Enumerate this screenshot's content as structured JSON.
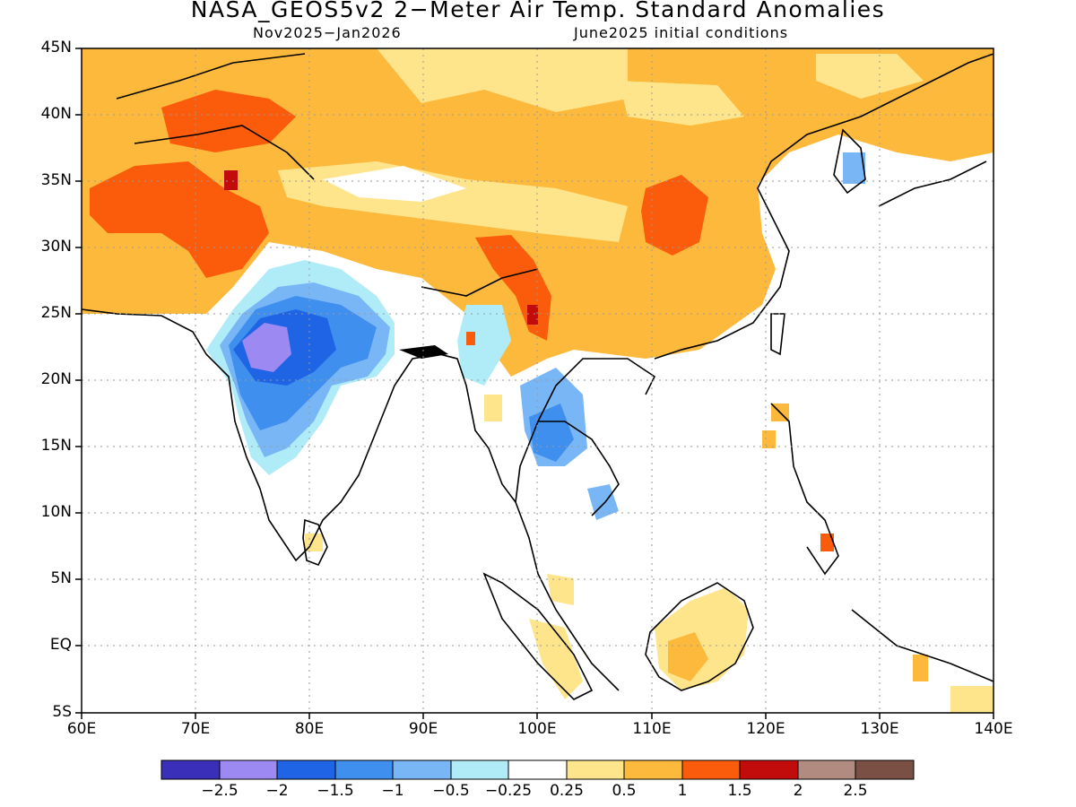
{
  "title": "NASA_GEOS5v2 2−Meter Air Temp. Standard Anomalies",
  "subtitle_left": "Nov2025−Jan2026",
  "subtitle_right": "June2025 initial conditions",
  "lat_labels": [
    "45N",
    "40N",
    "35N",
    "30N",
    "25N",
    "20N",
    "15N",
    "10N",
    "5N",
    "EQ",
    "5S"
  ],
  "lon_labels": [
    "60E",
    "70E",
    "80E",
    "90E",
    "100E",
    "110E",
    "120E",
    "130E",
    "140E"
  ],
  "colorbar": {
    "labels": [
      "−2.5",
      "−2",
      "−1.5",
      "−1",
      "−0.5",
      "−0.25",
      "0.25",
      "0.5",
      "1",
      "1.5",
      "2",
      "2.5"
    ],
    "colors": [
      "#3a2fb8",
      "#9c8af2",
      "#1f64e4",
      "#3f8fee",
      "#78b6f6",
      "#b0ecf8",
      "#ffffff",
      "#fee58c",
      "#fdb93c",
      "#fb5c0c",
      "#c20b0b",
      "#b18a80",
      "#7b5044"
    ]
  },
  "map": {
    "region": "South and East Asia, 60E–140E, 5S–45N",
    "grid": "dotted"
  }
}
